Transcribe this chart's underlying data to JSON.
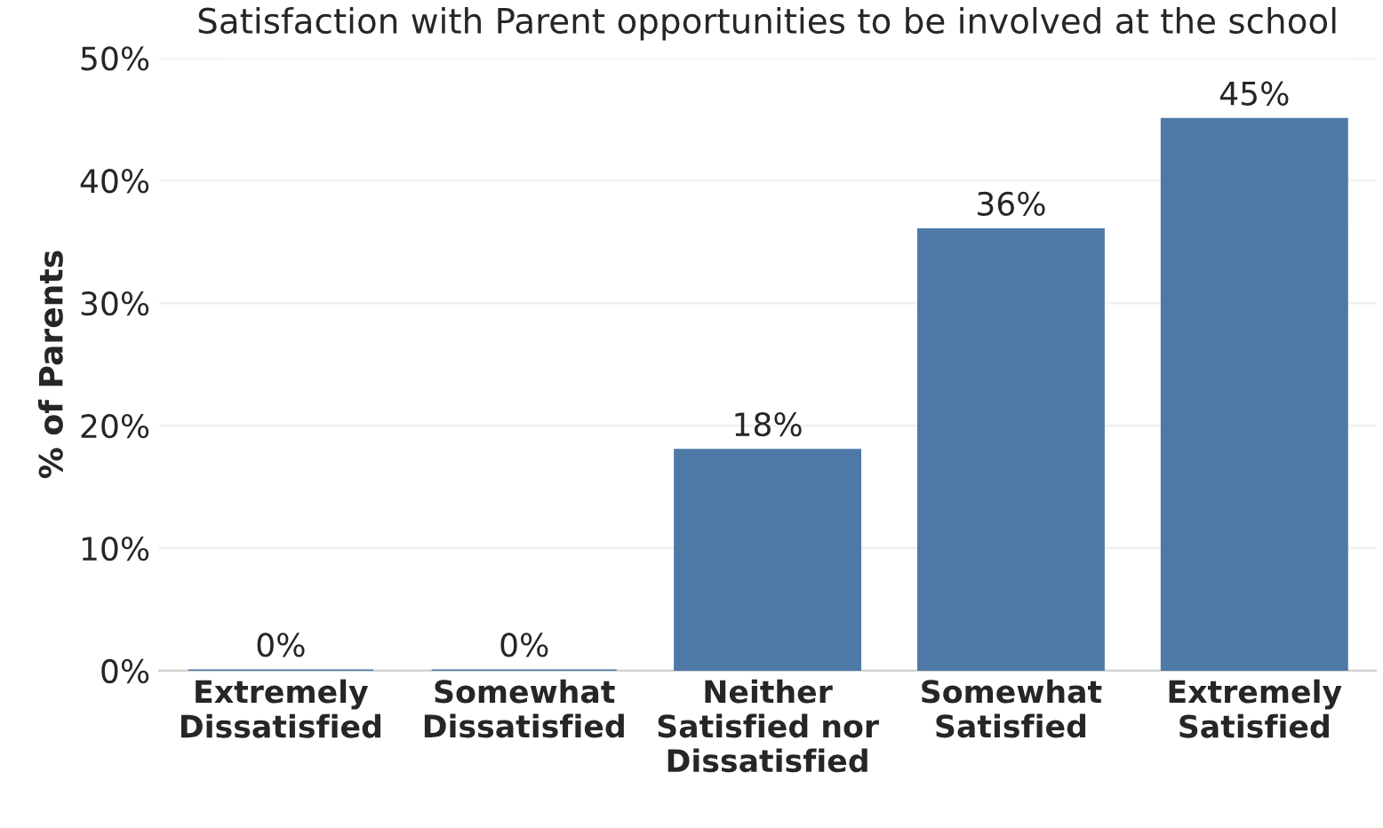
{
  "chart_data": {
    "type": "bar",
    "title": "Satisfaction with Parent opportunities to be involved at the school",
    "ylabel": "% of Parents",
    "categories": [
      "Extremely\nDissatisfied",
      "Somewhat\nDissatisfied",
      "Neither\nSatisfied nor\nDissatisfied",
      "Somewhat\nSatisfied",
      "Extremely\nSatisfied"
    ],
    "values": [
      0,
      0,
      18,
      36,
      45
    ],
    "value_labels": [
      "0%",
      "0%",
      "18%",
      "36%",
      "45%"
    ],
    "color": "#4e79a7",
    "ylim": [
      0,
      50
    ],
    "yticks": [
      {
        "value": 0,
        "label": "0%"
      },
      {
        "value": 10,
        "label": "10%"
      },
      {
        "value": 20,
        "label": "20%"
      },
      {
        "value": 30,
        "label": "30%"
      },
      {
        "value": 40,
        "label": "40%"
      },
      {
        "value": 50,
        "label": "50%"
      }
    ],
    "grid": "y"
  }
}
